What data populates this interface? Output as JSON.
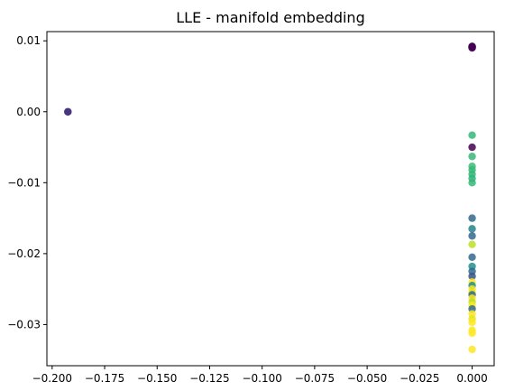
{
  "chart_data": {
    "type": "scatter",
    "title": "LLE - manifold embedding",
    "xlabel": "",
    "ylabel": "",
    "xlim": [
      -0.2025,
      0.0105
    ],
    "ylim": [
      -0.0358,
      0.0113
    ],
    "x_ticks": [
      -0.2,
      -0.175,
      -0.15,
      -0.125,
      -0.1,
      -0.075,
      -0.05,
      -0.025,
      0.0
    ],
    "x_tick_labels": [
      "−0.200",
      "−0.175",
      "−0.150",
      "−0.125",
      "−0.100",
      "−0.075",
      "−0.050",
      "−0.025",
      "0.000"
    ],
    "y_ticks": [
      -0.03,
      -0.02,
      -0.01,
      0.0,
      0.01
    ],
    "y_tick_labels": [
      "−0.03",
      "−0.02",
      "−0.01",
      "0.00",
      "0.01"
    ],
    "grid": false,
    "legend": "none",
    "colormap": "viridis",
    "points": [
      {
        "x": -0.1925,
        "y": 0.0,
        "color": "#3b528b"
      },
      {
        "x": -0.1925,
        "y": 0.0,
        "color": "#472c7a"
      },
      {
        "x": 0.0,
        "y": 0.0092,
        "color": "#440154"
      },
      {
        "x": 0.0,
        "y": 0.0091,
        "color": "#440154"
      },
      {
        "x": 0.0,
        "y": 0.009,
        "color": "#440154"
      },
      {
        "x": 0.0,
        "y": 0.0091,
        "color": "#46085c"
      },
      {
        "x": 0.0,
        "y": 0.0092,
        "color": "#440154"
      },
      {
        "x": 0.0,
        "y": -0.0033,
        "color": "#35b779"
      },
      {
        "x": 0.0,
        "y": -0.005,
        "color": "#440154"
      },
      {
        "x": 0.0,
        "y": -0.0063,
        "color": "#35b779"
      },
      {
        "x": 0.0,
        "y": -0.0077,
        "color": "#3bbb75"
      },
      {
        "x": 0.0,
        "y": -0.0082,
        "color": "#35b779"
      },
      {
        "x": 0.0,
        "y": -0.0088,
        "color": "#35b779"
      },
      {
        "x": 0.0,
        "y": -0.0094,
        "color": "#2fb47c"
      },
      {
        "x": 0.0,
        "y": -0.01,
        "color": "#35b779"
      },
      {
        "x": 0.0,
        "y": -0.015,
        "color": "#31688e"
      },
      {
        "x": 0.0,
        "y": -0.0165,
        "color": "#26828e"
      },
      {
        "x": 0.0,
        "y": -0.0175,
        "color": "#31688e"
      },
      {
        "x": 0.0,
        "y": -0.0187,
        "color": "#bddf26"
      },
      {
        "x": 0.0,
        "y": -0.0205,
        "color": "#31688e"
      },
      {
        "x": 0.0,
        "y": -0.0218,
        "color": "#21918c"
      },
      {
        "x": 0.0,
        "y": -0.0225,
        "color": "#31688e"
      },
      {
        "x": 0.0,
        "y": -0.0232,
        "color": "#3b528b"
      },
      {
        "x": 0.0,
        "y": -0.024,
        "color": "#fde725"
      },
      {
        "x": 0.0,
        "y": -0.0245,
        "color": "#21918c"
      },
      {
        "x": 0.0,
        "y": -0.025,
        "color": "#fde725"
      },
      {
        "x": 0.0,
        "y": -0.0255,
        "color": "#e5e419"
      },
      {
        "x": 0.0,
        "y": -0.0258,
        "color": "#31688e"
      },
      {
        "x": 0.0,
        "y": -0.0263,
        "color": "#fde725"
      },
      {
        "x": 0.0,
        "y": -0.0268,
        "color": "#bddf26"
      },
      {
        "x": 0.0,
        "y": -0.0273,
        "color": "#fde725"
      },
      {
        "x": 0.0,
        "y": -0.0278,
        "color": "#31688e"
      },
      {
        "x": 0.0,
        "y": -0.0285,
        "color": "#fde725"
      },
      {
        "x": 0.0,
        "y": -0.0292,
        "color": "#e5e419"
      },
      {
        "x": 0.0,
        "y": -0.0297,
        "color": "#fde725"
      },
      {
        "x": 0.0,
        "y": -0.0308,
        "color": "#fde725"
      },
      {
        "x": 0.0,
        "y": -0.0312,
        "color": "#fde725"
      },
      {
        "x": 0.0,
        "y": -0.0335,
        "color": "#fde725"
      }
    ]
  }
}
